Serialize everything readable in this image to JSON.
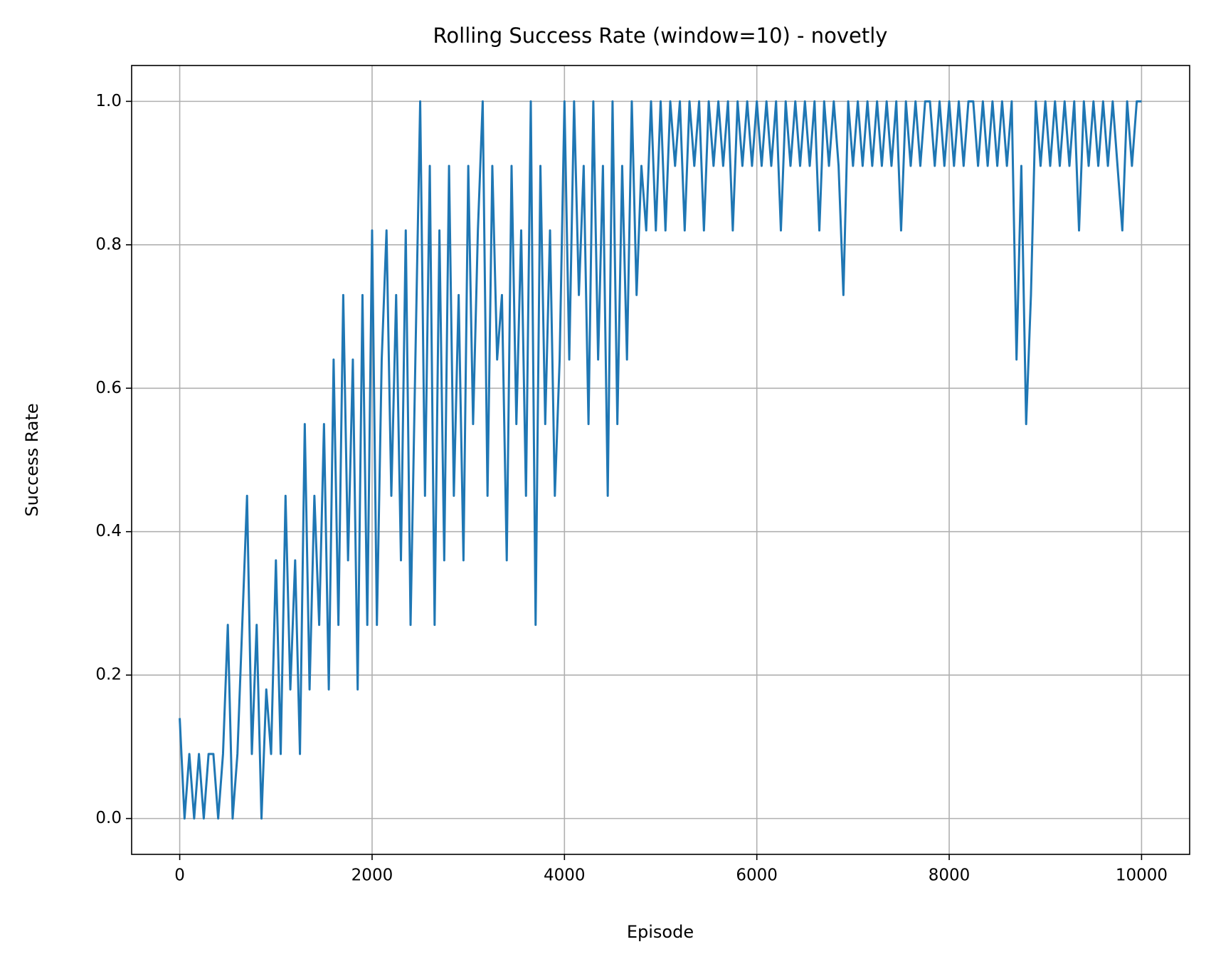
{
  "chart_data": {
    "type": "line",
    "title": "Rolling Success Rate (window=10) - novetly",
    "xlabel": "Episode",
    "ylabel": "Success Rate",
    "grid": true,
    "xlim": [
      -500,
      10500
    ],
    "ylim": [
      -0.05,
      1.05
    ],
    "xticks": [
      0,
      2000,
      4000,
      6000,
      8000,
      10000
    ],
    "yticks": [
      {
        "value": 0,
        "label": "0.0"
      },
      0.2,
      0.4,
      0.6,
      0.8,
      {
        "value": 1,
        "label": "1.0"
      }
    ],
    "x": [
      0,
      50,
      100,
      150,
      200,
      250,
      300,
      350,
      400,
      450,
      500,
      550,
      600,
      650,
      700,
      750,
      800,
      850,
      900,
      950,
      1000,
      1050,
      1100,
      1150,
      1200,
      1250,
      1300,
      1350,
      1400,
      1450,
      1500,
      1550,
      1600,
      1650,
      1700,
      1750,
      1800,
      1850,
      1900,
      1950,
      2000,
      2050,
      2100,
      2150,
      2200,
      2250,
      2300,
      2350,
      2400,
      2450,
      2500,
      2550,
      2600,
      2650,
      2700,
      2750,
      2800,
      2850,
      2900,
      2950,
      3000,
      3050,
      3100,
      3150,
      3200,
      3250,
      3300,
      3350,
      3400,
      3450,
      3500,
      3550,
      3600,
      3650,
      3700,
      3750,
      3800,
      3850,
      3900,
      3950,
      4000,
      4050,
      4100,
      4150,
      4200,
      4250,
      4300,
      4350,
      4400,
      4450,
      4500,
      4550,
      4600,
      4650,
      4700,
      4750,
      4800,
      4850,
      4900,
      4950,
      5000,
      5050,
      5100,
      5150,
      5200,
      5250,
      5300,
      5350,
      5400,
      5450,
      5500,
      5550,
      5600,
      5650,
      5700,
      5750,
      5800,
      5850,
      5900,
      5950,
      6000,
      6050,
      6100,
      6150,
      6200,
      6250,
      6300,
      6350,
      6400,
      6450,
      6500,
      6550,
      6600,
      6650,
      6700,
      6750,
      6800,
      6850,
      6900,
      6950,
      7000,
      7050,
      7100,
      7150,
      7200,
      7250,
      7300,
      7350,
      7400,
      7450,
      7500,
      7550,
      7600,
      7650,
      7700,
      7750,
      7800,
      7850,
      7900,
      7950,
      8000,
      8050,
      8100,
      8150,
      8200,
      8250,
      8300,
      8350,
      8400,
      8450,
      8500,
      8550,
      8600,
      8650,
      8700,
      8750,
      8800,
      8850,
      8900,
      8950,
      9000,
      9050,
      9100,
      9150,
      9200,
      9250,
      9300,
      9350,
      9400,
      9450,
      9500,
      9550,
      9600,
      9650,
      9700,
      9750,
      9800,
      9850,
      9900,
      9950,
      10000
    ],
    "series": [
      {
        "name": "novetly",
        "color": "#1f77b4",
        "values": [
          0.14,
          0,
          0.09,
          0,
          0.09,
          0,
          0.09,
          0.09,
          0,
          0.09,
          0.27,
          0,
          0.09,
          0.27,
          0.45,
          0.09,
          0.27,
          0,
          0.18,
          0.09,
          0.36,
          0.09,
          0.45,
          0.18,
          0.36,
          0.09,
          0.55,
          0.18,
          0.45,
          0.27,
          0.55,
          0.18,
          0.64,
          0.27,
          0.73,
          0.36,
          0.64,
          0.18,
          0.73,
          0.27,
          0.82,
          0.27,
          0.64,
          0.82,
          0.45,
          0.73,
          0.36,
          0.82,
          0.27,
          0.64,
          1.0,
          0.45,
          0.91,
          0.27,
          0.82,
          0.36,
          0.91,
          0.45,
          0.73,
          0.36,
          0.91,
          0.55,
          0.82,
          1.0,
          0.45,
          0.91,
          0.64,
          0.73,
          0.36,
          0.91,
          0.55,
          0.82,
          0.45,
          1.0,
          0.27,
          0.91,
          0.55,
          0.82,
          0.45,
          0.64,
          1.0,
          0.64,
          1.0,
          0.73,
          0.91,
          0.55,
          1.0,
          0.64,
          0.91,
          0.45,
          1.0,
          0.55,
          0.91,
          0.64,
          1.0,
          0.73,
          0.91,
          0.82,
          1.0,
          0.82,
          1.0,
          0.82,
          1.0,
          0.91,
          1.0,
          0.82,
          1.0,
          0.91,
          1.0,
          0.82,
          1.0,
          0.91,
          1.0,
          0.91,
          1.0,
          0.82,
          1.0,
          0.91,
          1.0,
          0.91,
          1.0,
          0.91,
          1.0,
          0.91,
          1.0,
          0.82,
          1.0,
          0.91,
          1.0,
          0.91,
          1.0,
          0.91,
          1.0,
          0.82,
          1.0,
          0.91,
          1.0,
          0.91,
          0.73,
          1.0,
          0.91,
          1.0,
          0.91,
          1.0,
          0.91,
          1.0,
          0.91,
          1.0,
          0.91,
          1.0,
          0.82,
          1.0,
          0.91,
          1.0,
          0.91,
          1.0,
          1.0,
          0.91,
          1.0,
          0.91,
          1.0,
          0.91,
          1.0,
          0.91,
          1.0,
          1.0,
          0.91,
          1.0,
          0.91,
          1.0,
          0.91,
          1.0,
          0.91,
          1.0,
          0.64,
          0.91,
          0.55,
          0.73,
          1.0,
          0.91,
          1.0,
          0.91,
          1.0,
          0.91,
          1.0,
          0.91,
          1.0,
          0.82,
          1.0,
          0.91,
          1.0,
          0.91,
          1.0,
          0.91,
          1.0,
          0.91,
          0.82,
          1.0,
          0.91,
          1.0,
          1.0
        ]
      }
    ]
  }
}
